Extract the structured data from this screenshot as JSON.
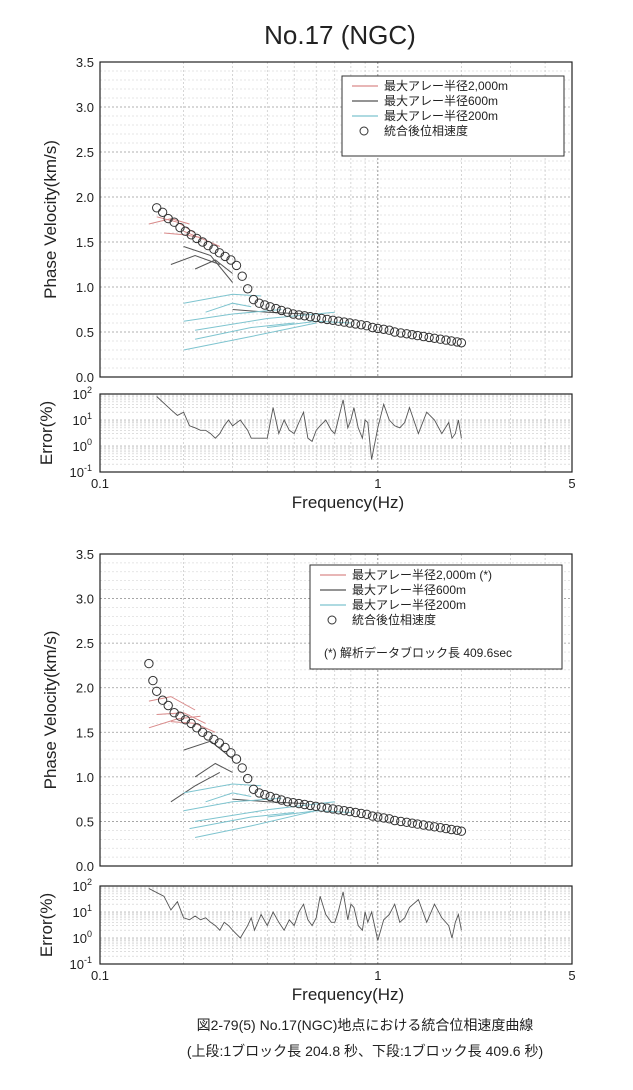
{
  "page_title": "No.17 (NGC)",
  "caption": {
    "line1": "図2-79(5) No.17(NGC)地点における統合位相速度曲線",
    "line2": "(上段:1ブロック長 204.8 秒、下段:1ブロック長 409.6 秒)"
  },
  "colors": {
    "red": "#d98a8a",
    "dark": "#555555",
    "cyan": "#7ec4cf",
    "marker": "#333333"
  },
  "chart_data": [
    {
      "type": "line",
      "panel": "phase-velocity-upper",
      "ylabel": "Phase Velocity(km/s)",
      "xscale": "log",
      "xlim": [
        0.1,
        5
      ],
      "ylim": [
        0,
        3.5
      ],
      "yticks": [
        "0.0",
        "0.5",
        "1.0",
        "1.5",
        "2.0",
        "2.5",
        "3.0",
        "3.5"
      ],
      "grid": true,
      "legend_position": "top-right",
      "legend": [
        "最大アレー半径2,000m",
        "最大アレー半径600m",
        "最大アレー半径200m",
        "統合後位相速度"
      ],
      "series": [
        {
          "name": "最大アレー半径2,000m",
          "color": "red",
          "segments": [
            [
              [
                0.16,
                1.78
              ],
              [
                0.19,
                1.72
              ],
              [
                0.22,
                1.6
              ]
            ],
            [
              [
                0.15,
                1.7
              ],
              [
                0.18,
                1.76
              ],
              [
                0.21,
                1.7
              ]
            ],
            [
              [
                0.2,
                1.62
              ],
              [
                0.24,
                1.52
              ],
              [
                0.27,
                1.45
              ]
            ],
            [
              [
                0.17,
                1.6
              ],
              [
                0.2,
                1.58
              ],
              [
                0.23,
                1.55
              ]
            ]
          ]
        },
        {
          "name": "最大アレー半径600m",
          "color": "dark",
          "segments": [
            [
              [
                0.18,
                1.25
              ],
              [
                0.22,
                1.35
              ],
              [
                0.27,
                1.25
              ]
            ],
            [
              [
                0.2,
                1.45
              ],
              [
                0.25,
                1.35
              ],
              [
                0.3,
                1.05
              ]
            ],
            [
              [
                0.22,
                1.2
              ],
              [
                0.26,
                1.3
              ],
              [
                0.3,
                1.15
              ]
            ],
            [
              [
                0.3,
                0.75
              ],
              [
                0.4,
                0.72
              ],
              [
                0.55,
                0.7
              ]
            ]
          ]
        },
        {
          "name": "最大アレー半径200m",
          "color": "cyan",
          "segments": [
            [
              [
                0.2,
                0.3
              ],
              [
                0.35,
                0.45
              ],
              [
                0.6,
                0.6
              ]
            ],
            [
              [
                0.22,
                0.52
              ],
              [
                0.4,
                0.65
              ],
              [
                0.7,
                0.72
              ]
            ],
            [
              [
                0.2,
                0.62
              ],
              [
                0.3,
                0.7
              ],
              [
                0.45,
                0.75
              ]
            ],
            [
              [
                0.2,
                0.82
              ],
              [
                0.3,
                0.92
              ],
              [
                0.38,
                0.9
              ]
            ],
            [
              [
                0.24,
                0.72
              ],
              [
                0.3,
                0.82
              ],
              [
                0.35,
                0.78
              ]
            ],
            [
              [
                0.4,
                0.55
              ],
              [
                0.6,
                0.62
              ],
              [
                0.8,
                0.6
              ]
            ],
            [
              [
                0.22,
                0.42
              ],
              [
                0.35,
                0.55
              ],
              [
                0.5,
                0.6
              ]
            ]
          ]
        },
        {
          "name": "統合後位相速度",
          "color": "marker",
          "marker": "circle",
          "x": [
            0.16,
            0.168,
            0.176,
            0.185,
            0.194,
            0.203,
            0.213,
            0.223,
            0.234,
            0.245,
            0.257,
            0.269,
            0.282,
            0.296,
            0.31,
            0.325,
            0.34,
            0.357,
            0.374,
            0.392,
            0.41,
            0.43,
            0.45,
            0.473,
            0.496,
            0.52,
            0.545,
            0.571,
            0.598,
            0.627,
            0.657,
            0.689,
            0.722,
            0.757,
            0.793,
            0.831,
            0.871,
            0.913,
            0.957,
            1.0,
            1.05,
            1.1,
            1.15,
            1.21,
            1.27,
            1.33,
            1.39,
            1.46,
            1.53,
            1.6,
            1.68,
            1.76,
            1.84,
            1.93,
            2.0
          ],
          "y": [
            1.88,
            1.83,
            1.76,
            1.72,
            1.66,
            1.62,
            1.58,
            1.54,
            1.5,
            1.46,
            1.42,
            1.38,
            1.34,
            1.3,
            1.24,
            1.12,
            0.98,
            0.86,
            0.82,
            0.8,
            0.78,
            0.76,
            0.74,
            0.72,
            0.7,
            0.69,
            0.68,
            0.67,
            0.66,
            0.65,
            0.64,
            0.63,
            0.62,
            0.61,
            0.6,
            0.59,
            0.58,
            0.57,
            0.55,
            0.54,
            0.53,
            0.52,
            0.5,
            0.49,
            0.48,
            0.47,
            0.46,
            0.45,
            0.44,
            0.43,
            0.42,
            0.41,
            0.4,
            0.39,
            0.38
          ]
        }
      ]
    },
    {
      "type": "line",
      "panel": "error-upper",
      "xlabel": "Frequency(Hz)",
      "ylabel": "Error(%)",
      "xscale": "log",
      "yscale": "log",
      "xlim": [
        0.1,
        5
      ],
      "ylim": [
        0.1,
        100
      ],
      "xticks": [
        "0.1",
        "1",
        "5"
      ],
      "yticks": [
        "10^-1",
        "10^0",
        "10^1",
        "10^2"
      ],
      "grid": true,
      "series": [
        {
          "name": "",
          "color": "dark",
          "x": [
            0.16,
            0.18,
            0.19,
            0.2,
            0.21,
            0.22,
            0.23,
            0.24,
            0.25,
            0.26,
            0.27,
            0.28,
            0.29,
            0.3,
            0.32,
            0.34,
            0.35,
            0.36,
            0.38,
            0.4,
            0.42,
            0.44,
            0.46,
            0.48,
            0.5,
            0.52,
            0.54,
            0.56,
            0.58,
            0.6,
            0.62,
            0.65,
            0.68,
            0.7,
            0.72,
            0.75,
            0.78,
            0.8,
            0.82,
            0.85,
            0.88,
            0.9,
            0.92,
            0.95,
            1.0,
            1.05,
            1.1,
            1.15,
            1.2,
            1.25,
            1.3,
            1.4,
            1.5,
            1.6,
            1.7,
            1.8,
            1.85,
            1.9,
            1.95,
            2.0
          ],
          "y": [
            80,
            25,
            15,
            20,
            6,
            5,
            4,
            4,
            3,
            2,
            3,
            6,
            10,
            6,
            10,
            4,
            2,
            2,
            2,
            2,
            30,
            3,
            10,
            4,
            3,
            8,
            20,
            2,
            1.5,
            4,
            6,
            10,
            4,
            3,
            10,
            60,
            5,
            10,
            30,
            5,
            2,
            10,
            8,
            0.3,
            5,
            40,
            10,
            6,
            5,
            8,
            30,
            3,
            20,
            10,
            3,
            8,
            2,
            3,
            10,
            2
          ]
        }
      ]
    },
    {
      "type": "line",
      "panel": "phase-velocity-lower",
      "ylabel": "Phase Velocity(km/s)",
      "xscale": "log",
      "xlim": [
        0.1,
        5
      ],
      "ylim": [
        0,
        3.5
      ],
      "yticks": [
        "0.0",
        "0.5",
        "1.0",
        "1.5",
        "2.0",
        "2.5",
        "3.0",
        "3.5"
      ],
      "grid": true,
      "legend_position": "top-right",
      "legend": [
        "最大アレー半径2,000m (*)",
        "最大アレー半径600m",
        "最大アレー半径200m",
        "統合後位相速度"
      ],
      "legend_note": "(*) 解析データブロック長 409.6sec",
      "series": [
        {
          "name": "最大アレー半径2,000m (*)",
          "color": "red",
          "segments": [
            [
              [
                0.15,
                1.85
              ],
              [
                0.18,
                1.9
              ],
              [
                0.22,
                1.75
              ]
            ],
            [
              [
                0.16,
                1.7
              ],
              [
                0.2,
                1.72
              ],
              [
                0.24,
                1.6
              ]
            ],
            [
              [
                0.18,
                1.62
              ],
              [
                0.22,
                1.6
              ],
              [
                0.26,
                1.5
              ]
            ],
            [
              [
                0.15,
                1.55
              ],
              [
                0.19,
                1.65
              ],
              [
                0.23,
                1.68
              ]
            ]
          ]
        },
        {
          "name": "最大アレー半径600m",
          "color": "dark",
          "segments": [
            [
              [
                0.18,
                0.72
              ],
              [
                0.22,
                0.9
              ],
              [
                0.27,
                1.05
              ]
            ],
            [
              [
                0.2,
                1.3
              ],
              [
                0.25,
                1.4
              ],
              [
                0.3,
                1.2
              ]
            ],
            [
              [
                0.22,
                1.0
              ],
              [
                0.26,
                1.15
              ],
              [
                0.3,
                1.05
              ]
            ],
            [
              [
                0.3,
                0.75
              ],
              [
                0.4,
                0.72
              ],
              [
                0.55,
                0.7
              ]
            ]
          ]
        },
        {
          "name": "最大アレー半径200m",
          "color": "cyan",
          "segments": [
            [
              [
                0.22,
                0.32
              ],
              [
                0.35,
                0.45
              ],
              [
                0.6,
                0.62
              ]
            ],
            [
              [
                0.22,
                0.5
              ],
              [
                0.4,
                0.63
              ],
              [
                0.7,
                0.72
              ]
            ],
            [
              [
                0.2,
                0.62
              ],
              [
                0.3,
                0.72
              ],
              [
                0.45,
                0.76
              ]
            ],
            [
              [
                0.2,
                0.82
              ],
              [
                0.3,
                0.92
              ],
              [
                0.38,
                0.9
              ]
            ],
            [
              [
                0.24,
                0.72
              ],
              [
                0.3,
                0.82
              ],
              [
                0.35,
                0.78
              ]
            ],
            [
              [
                0.4,
                0.55
              ],
              [
                0.6,
                0.62
              ],
              [
                0.8,
                0.6
              ]
            ],
            [
              [
                0.21,
                0.42
              ],
              [
                0.35,
                0.55
              ],
              [
                0.5,
                0.6
              ]
            ]
          ]
        },
        {
          "name": "統合後位相速度",
          "color": "marker",
          "marker": "circle",
          "x": [
            0.15,
            0.155,
            0.16,
            0.168,
            0.176,
            0.185,
            0.194,
            0.203,
            0.213,
            0.223,
            0.234,
            0.245,
            0.257,
            0.269,
            0.282,
            0.296,
            0.31,
            0.325,
            0.34,
            0.357,
            0.374,
            0.392,
            0.41,
            0.43,
            0.45,
            0.473,
            0.496,
            0.52,
            0.545,
            0.571,
            0.598,
            0.627,
            0.657,
            0.689,
            0.722,
            0.757,
            0.793,
            0.831,
            0.871,
            0.913,
            0.957,
            1.0,
            1.05,
            1.1,
            1.15,
            1.21,
            1.27,
            1.33,
            1.39,
            1.46,
            1.53,
            1.6,
            1.68,
            1.76,
            1.84,
            1.93,
            2.0
          ],
          "y": [
            2.27,
            2.08,
            1.96,
            1.86,
            1.8,
            1.72,
            1.68,
            1.64,
            1.6,
            1.55,
            1.5,
            1.46,
            1.42,
            1.38,
            1.33,
            1.27,
            1.2,
            1.1,
            0.98,
            0.86,
            0.82,
            0.8,
            0.78,
            0.76,
            0.74,
            0.72,
            0.71,
            0.7,
            0.69,
            0.68,
            0.67,
            0.66,
            0.65,
            0.64,
            0.63,
            0.62,
            0.61,
            0.6,
            0.59,
            0.58,
            0.56,
            0.55,
            0.54,
            0.53,
            0.51,
            0.5,
            0.49,
            0.48,
            0.47,
            0.46,
            0.45,
            0.44,
            0.43,
            0.42,
            0.41,
            0.4,
            0.39
          ]
        }
      ]
    },
    {
      "type": "line",
      "panel": "error-lower",
      "xlabel": "Frequency(Hz)",
      "ylabel": "Error(%)",
      "xscale": "log",
      "yscale": "log",
      "xlim": [
        0.1,
        5
      ],
      "ylim": [
        0.1,
        100
      ],
      "xticks": [
        "0.1",
        "1",
        "5"
      ],
      "yticks": [
        "10^-1",
        "10^0",
        "10^1",
        "10^2"
      ],
      "grid": true,
      "series": [
        {
          "name": "",
          "color": "dark",
          "x": [
            0.15,
            0.17,
            0.18,
            0.19,
            0.2,
            0.21,
            0.22,
            0.23,
            0.24,
            0.25,
            0.26,
            0.27,
            0.28,
            0.29,
            0.3,
            0.32,
            0.34,
            0.35,
            0.36,
            0.38,
            0.4,
            0.42,
            0.44,
            0.46,
            0.48,
            0.5,
            0.52,
            0.54,
            0.56,
            0.58,
            0.6,
            0.62,
            0.65,
            0.68,
            0.7,
            0.72,
            0.75,
            0.78,
            0.8,
            0.82,
            0.85,
            0.88,
            0.9,
            0.92,
            0.95,
            1.0,
            1.05,
            1.1,
            1.15,
            1.2,
            1.25,
            1.3,
            1.4,
            1.5,
            1.6,
            1.7,
            1.8,
            1.85,
            1.9,
            1.95,
            2.0
          ],
          "y": [
            80,
            40,
            12,
            25,
            6,
            5,
            7,
            5,
            6,
            4,
            3,
            2,
            4,
            3,
            2,
            1,
            3,
            6,
            2,
            8,
            3,
            10,
            4,
            2,
            5,
            3,
            10,
            20,
            5,
            3,
            6,
            40,
            8,
            4,
            4,
            10,
            60,
            5,
            20,
            15,
            3,
            2,
            10,
            4,
            10,
            0.8,
            5,
            8,
            20,
            4,
            6,
            15,
            30,
            4,
            20,
            6,
            3,
            1,
            4,
            8,
            2
          ]
        }
      ]
    }
  ]
}
